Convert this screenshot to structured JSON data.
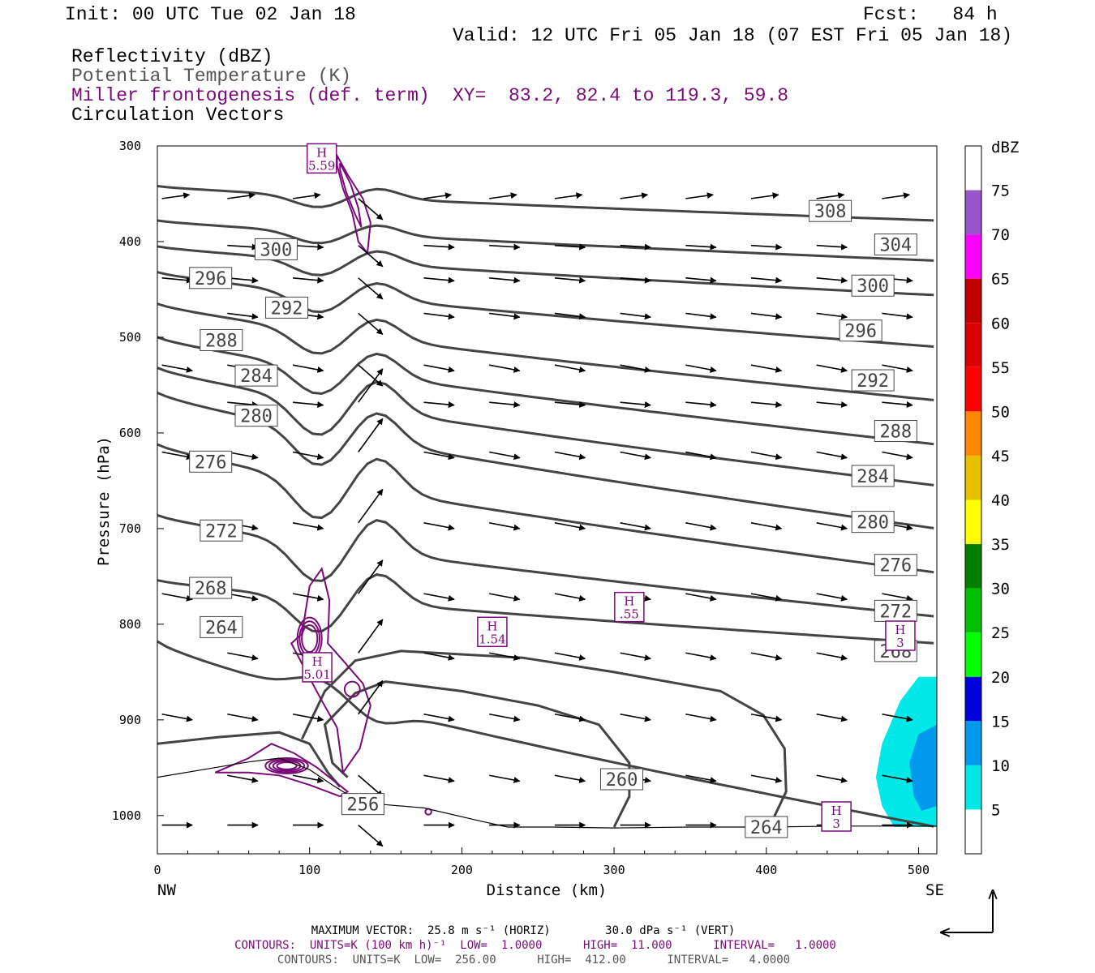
{
  "header": {
    "init": "Init: 00 UTC Tue 02 Jan 18",
    "fcst": "Fcst:   84 h",
    "valid": "Valid: 12 UTC Fri 05 Jan 18 (07 EST Fri 05 Jan 18)",
    "field1": "Reflectivity (dBZ)",
    "field2": "Potential Temperature (K)",
    "field3": "Miller frontogenesis (def. term)",
    "xy": "XY=  83.2, 82.4 to 119.3, 59.8",
    "field4": "Circulation Vectors"
  },
  "colorbar": {
    "title": "dBZ",
    "labels": [
      "75",
      "70",
      "65",
      "60",
      "55",
      "50",
      "45",
      "40",
      "35",
      "30",
      "25",
      "20",
      "15",
      "10",
      "5"
    ],
    "colors": [
      "#ffffff",
      "#9955cc",
      "#ff00ff",
      "#c00000",
      "#dd0000",
      "#ff0000",
      "#ff8800",
      "#e8c000",
      "#ffff00",
      "#008000",
      "#00c000",
      "#00ff00",
      "#0000dd",
      "#0099ee",
      "#00e8e8",
      "#ffffff"
    ]
  },
  "footer": {
    "line1": "MAXIMUM VECTOR:  25.8 m s⁻¹ (HORIZ)        30.0 dPa s⁻¹ (VERT)",
    "line2": "CONTOURS:  UNITS=K (100 km h)⁻¹  LOW=  1.0000      HIGH=  11.000      INTERVAL=   1.0000",
    "line3": "CONTOURS:  UNITS=K  LOW=  256.00      HIGH=  412.00      INTERVAL=   4.0000"
  },
  "chart_data": {
    "type": "cross-section",
    "xlabel": "Distance (km)",
    "ylabel": "Pressure (hPa)",
    "xlim": [
      0,
      512
    ],
    "ylim": [
      1040,
      300
    ],
    "x_ticks": [
      0,
      100,
      200,
      300,
      400,
      500
    ],
    "y_ticks": [
      300,
      400,
      500,
      600,
      700,
      800,
      900,
      1000
    ],
    "x_end_labels": {
      "left": "NW",
      "right": "SE"
    },
    "theta_contours": [
      {
        "level": 256,
        "label": "256",
        "label_x": 135,
        "label_p": 988
      },
      {
        "level": 260,
        "label": "260",
        "label_x": 305,
        "label_p": 962
      },
      {
        "level": 264,
        "label": "264",
        "label_x": 42,
        "label_p": 803
      },
      {
        "level": 264,
        "label": "264",
        "label_x": 400,
        "label_p": 1012
      },
      {
        "level": 268,
        "label": "268",
        "label_x": 35,
        "label_p": 762
      },
      {
        "level": 268,
        "label": "268",
        "label_x": 485,
        "label_p": 828
      },
      {
        "level": 272,
        "label": "272",
        "label_x": 42,
        "label_p": 702
      },
      {
        "level": 272,
        "label": "272",
        "label_x": 485,
        "label_p": 786
      },
      {
        "level": 276,
        "label": "276",
        "label_x": 35,
        "label_p": 630
      },
      {
        "level": 276,
        "label": "276",
        "label_x": 485,
        "label_p": 738
      },
      {
        "level": 280,
        "label": "280",
        "label_x": 65,
        "label_p": 582
      },
      {
        "level": 280,
        "label": "280",
        "label_x": 470,
        "label_p": 693
      },
      {
        "level": 284,
        "label": "284",
        "label_x": 65,
        "label_p": 540
      },
      {
        "level": 284,
        "label": "284",
        "label_x": 470,
        "label_p": 645
      },
      {
        "level": 288,
        "label": "288",
        "label_x": 42,
        "label_p": 503
      },
      {
        "level": 288,
        "label": "288",
        "label_x": 485,
        "label_p": 598
      },
      {
        "level": 292,
        "label": "292",
        "label_x": 85,
        "label_p": 469
      },
      {
        "level": 292,
        "label": "292",
        "label_x": 470,
        "label_p": 545
      },
      {
        "level": 296,
        "label": "296",
        "label_x": 35,
        "label_p": 438
      },
      {
        "level": 296,
        "label": "296",
        "label_x": 462,
        "label_p": 493
      },
      {
        "level": 300,
        "label": "300",
        "label_x": 78,
        "label_p": 408
      },
      {
        "level": 300,
        "label": "300",
        "label_x": 470,
        "label_p": 446
      },
      {
        "level": 304,
        "label": "304",
        "label_x": 485,
        "label_p": 403
      },
      {
        "level": 308,
        "label": "308",
        "label_x": 442,
        "label_p": 368
      }
    ],
    "frontogenesis_maxima": [
      {
        "label": "H",
        "value": "5.59",
        "x": 108,
        "p": 313
      },
      {
        "label": "H",
        "value": "5.01",
        "x": 105,
        "p": 845
      },
      {
        "label": "H",
        "value": "1.54",
        "x": 220,
        "p": 808
      },
      {
        "label": "H",
        "value": ".55",
        "x": 310,
        "p": 782
      },
      {
        "label": "H",
        "value": "3",
        "x": 488,
        "p": 812
      },
      {
        "label": "H",
        "value": "3",
        "x": 446,
        "p": 1001
      }
    ],
    "reflectivity_region": {
      "x_range": [
        472,
        512
      ],
      "p_range": [
        855,
        1012
      ],
      "max_dbz": 10
    }
  }
}
